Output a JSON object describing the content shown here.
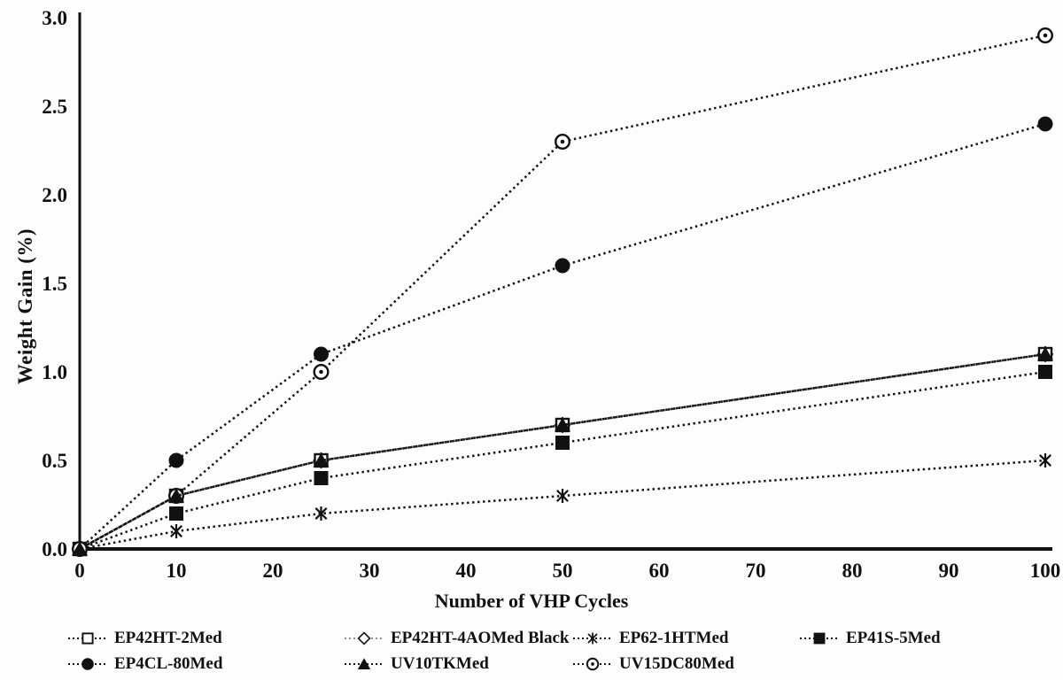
{
  "figure": {
    "background": "#fdfdfd",
    "text_color": "#111111",
    "axis_color": "#111111"
  },
  "chart_data": {
    "type": "line",
    "title": "",
    "xlabel": "Number of VHP Cycles",
    "ylabel": "Weight Gain (%)",
    "xlim": [
      0,
      100
    ],
    "ylim": [
      0.0,
      3.0
    ],
    "x_ticks": [
      "0",
      "10",
      "20",
      "30",
      "40",
      "50",
      "60",
      "70",
      "80",
      "90",
      "100"
    ],
    "x_tick_values": [
      0,
      10,
      20,
      30,
      40,
      50,
      60,
      70,
      80,
      90,
      100
    ],
    "y_ticks": [
      "0.0",
      "0.5",
      "1.0",
      "1.5",
      "2.0",
      "2.5",
      "3.0"
    ],
    "y_tick_values": [
      0.0,
      0.5,
      1.0,
      1.5,
      2.0,
      2.5,
      3.0
    ],
    "grid": false,
    "legend_position": "bottom",
    "line_style": "dotted",
    "x": [
      0,
      10,
      25,
      50,
      100
    ],
    "series": [
      {
        "name": "EP42HT-2Med",
        "marker": "square-open",
        "color": "#111111",
        "values": [
          0,
          0.3,
          0.5,
          0.7,
          1.1
        ]
      },
      {
        "name": "EP42HT-4AOMed Black",
        "marker": "diamond-open",
        "color": "#8f8f8f",
        "values": [
          0,
          0.3,
          0.5,
          0.7,
          1.1
        ]
      },
      {
        "name": "EP62-1HTMed",
        "marker": "asterisk",
        "color": "#111111",
        "values": [
          0,
          0.1,
          0.2,
          0.3,
          0.5
        ]
      },
      {
        "name": "EP41S-5Med",
        "marker": "square-filled",
        "color": "#111111",
        "values": [
          0,
          0.2,
          0.4,
          0.6,
          1.0
        ]
      },
      {
        "name": "EP4CL-80Med",
        "marker": "circle-filled",
        "color": "#111111",
        "values": [
          0,
          0.5,
          1.1,
          1.6,
          2.4
        ]
      },
      {
        "name": "UV10TKMed",
        "marker": "triangle-filled",
        "color": "#111111",
        "values": [
          0,
          0.3,
          0.5,
          0.7,
          1.1
        ]
      },
      {
        "name": "UV15DC80Med",
        "marker": "circle-dot",
        "color": "#111111",
        "values": [
          0,
          0.3,
          1.0,
          2.3,
          2.9
        ]
      }
    ],
    "draw_order": [
      1,
      0,
      2,
      3,
      4,
      6,
      5
    ],
    "legend_rows": [
      [
        0,
        1,
        2,
        3
      ],
      [
        4,
        5,
        6
      ]
    ]
  }
}
